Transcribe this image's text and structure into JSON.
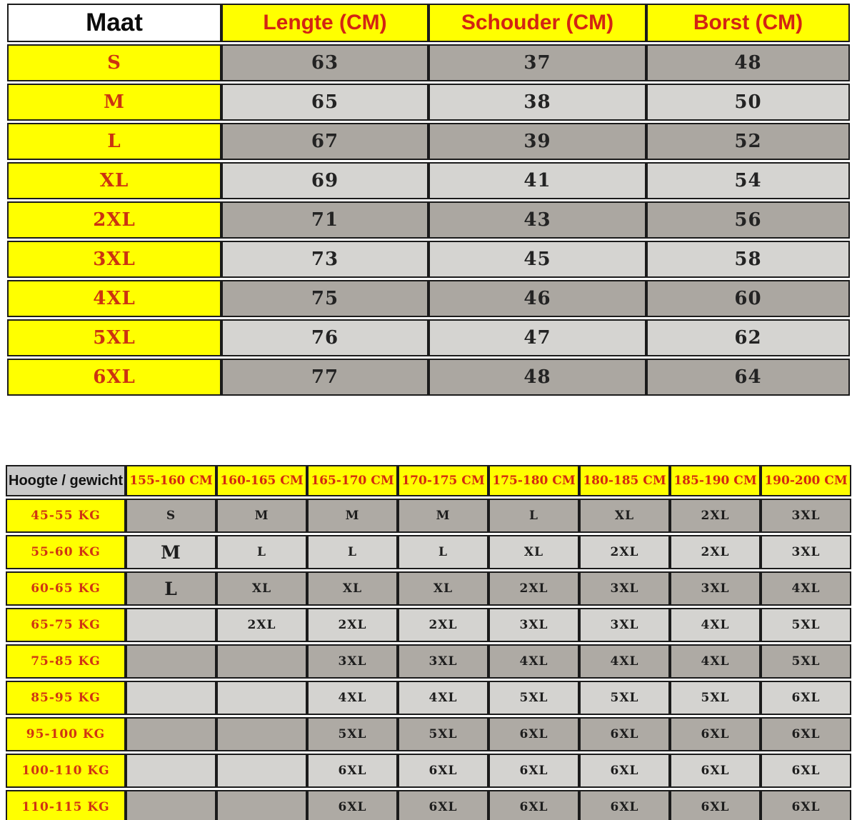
{
  "colors": {
    "yellow": "#ffff00",
    "red_text": "#d32413",
    "dark_row_gray": "#aba7a1",
    "light_row_gray": "#d5d4d1",
    "corner_gray": "#c9c9c9",
    "border_black": "#1b1b1b"
  },
  "size_table": {
    "headers": [
      "Maat",
      "Lengte (CM)",
      "Schouder (CM)",
      "Borst (CM)"
    ],
    "rows": [
      {
        "label": "S",
        "cells": [
          "63",
          "37",
          "48"
        ]
      },
      {
        "label": "M",
        "cells": [
          "65",
          "38",
          "50"
        ]
      },
      {
        "label": "L",
        "cells": [
          "67",
          "39",
          "52"
        ]
      },
      {
        "label": "XL",
        "cells": [
          "69",
          "41",
          "54"
        ]
      },
      {
        "label": "2XL",
        "cells": [
          "71",
          "43",
          "56"
        ]
      },
      {
        "label": "3XL",
        "cells": [
          "73",
          "45",
          "58"
        ]
      },
      {
        "label": "4XL",
        "cells": [
          "75",
          "46",
          "60"
        ]
      },
      {
        "label": "5XL",
        "cells": [
          "76",
          "47",
          "62"
        ]
      },
      {
        "label": "6XL",
        "cells": [
          "77",
          "48",
          "64"
        ]
      }
    ]
  },
  "fit_table": {
    "corner_header": "Hoogte / gewicht",
    "height_headers": [
      "155-160 CM",
      "160-165 CM",
      "165-170 CM",
      "170-175 CM",
      "175-180 CM",
      "180-185 CM",
      "185-190 CM",
      "190-200 CM"
    ],
    "large_cells": [
      [
        1,
        0
      ],
      [
        2,
        0
      ]
    ],
    "rows": [
      {
        "label": "45-55 KG",
        "cells": [
          "S",
          "M",
          "M",
          "M",
          "L",
          "XL",
          "2XL",
          "3XL"
        ]
      },
      {
        "label": "55-60 KG",
        "cells": [
          "M",
          "L",
          "L",
          "L",
          "XL",
          "2XL",
          "2XL",
          "3XL"
        ]
      },
      {
        "label": "60-65 KG",
        "cells": [
          "L",
          "XL",
          "XL",
          "XL",
          "2XL",
          "3XL",
          "3XL",
          "4XL"
        ]
      },
      {
        "label": "65-75 KG",
        "cells": [
          "",
          "2XL",
          "2XL",
          "2XL",
          "3XL",
          "3XL",
          "4XL",
          "5XL"
        ]
      },
      {
        "label": "75-85 KG",
        "cells": [
          "",
          "",
          "3XL",
          "3XL",
          "4XL",
          "4XL",
          "4XL",
          "5XL"
        ]
      },
      {
        "label": "85-95 KG",
        "cells": [
          "",
          "",
          "4XL",
          "4XL",
          "5XL",
          "5XL",
          "5XL",
          "6XL"
        ]
      },
      {
        "label": "95-100 KG",
        "cells": [
          "",
          "",
          "5XL",
          "5XL",
          "6XL",
          "6XL",
          "6XL",
          "6XL"
        ]
      },
      {
        "label": "100-110 KG",
        "cells": [
          "",
          "",
          "6XL",
          "6XL",
          "6XL",
          "6XL",
          "6XL",
          "6XL"
        ]
      },
      {
        "label": "110-115 KG",
        "cells": [
          "",
          "",
          "6XL",
          "6XL",
          "6XL",
          "6XL",
          "6XL",
          "6XL"
        ]
      }
    ]
  },
  "chart_data": [
    {
      "type": "table",
      "title": "Maat / Lengte / Schouder / Borst (CM)",
      "columns": [
        "Maat",
        "Lengte (CM)",
        "Schouder (CM)",
        "Borst (CM)"
      ],
      "rows": [
        [
          "S",
          63,
          37,
          48
        ],
        [
          "M",
          65,
          38,
          50
        ],
        [
          "L",
          67,
          39,
          52
        ],
        [
          "XL",
          69,
          41,
          54
        ],
        [
          "2XL",
          71,
          43,
          56
        ],
        [
          "3XL",
          73,
          45,
          58
        ],
        [
          "4XL",
          75,
          46,
          60
        ],
        [
          "5XL",
          76,
          47,
          62
        ],
        [
          "6XL",
          77,
          48,
          64
        ]
      ]
    },
    {
      "type": "table",
      "title": "Hoogte / gewicht maat-matrix",
      "columns": [
        "Hoogte / gewicht",
        "155-160 CM",
        "160-165 CM",
        "165-170 CM",
        "170-175 CM",
        "175-180 CM",
        "180-185 CM",
        "185-190 CM",
        "190-200 CM"
      ],
      "rows": [
        [
          "45-55 KG",
          "S",
          "M",
          "M",
          "M",
          "L",
          "XL",
          "2XL",
          "3XL"
        ],
        [
          "55-60 KG",
          "M",
          "L",
          "L",
          "L",
          "XL",
          "2XL",
          "2XL",
          "3XL"
        ],
        [
          "60-65 KG",
          "L",
          "XL",
          "XL",
          "XL",
          "2XL",
          "3XL",
          "3XL",
          "4XL"
        ],
        [
          "65-75 KG",
          "",
          "2XL",
          "2XL",
          "2XL",
          "3XL",
          "3XL",
          "4XL",
          "5XL"
        ],
        [
          "75-85 KG",
          "",
          "",
          "3XL",
          "3XL",
          "4XL",
          "4XL",
          "4XL",
          "5XL"
        ],
        [
          "85-95 KG",
          "",
          "",
          "4XL",
          "4XL",
          "5XL",
          "5XL",
          "5XL",
          "6XL"
        ],
        [
          "95-100 KG",
          "",
          "",
          "5XL",
          "5XL",
          "6XL",
          "6XL",
          "6XL",
          "6XL"
        ],
        [
          "100-110 KG",
          "",
          "",
          "6XL",
          "6XL",
          "6XL",
          "6XL",
          "6XL",
          "6XL"
        ],
        [
          "110-115 KG",
          "",
          "",
          "6XL",
          "6XL",
          "6XL",
          "6XL",
          "6XL",
          "6XL"
        ]
      ]
    }
  ]
}
